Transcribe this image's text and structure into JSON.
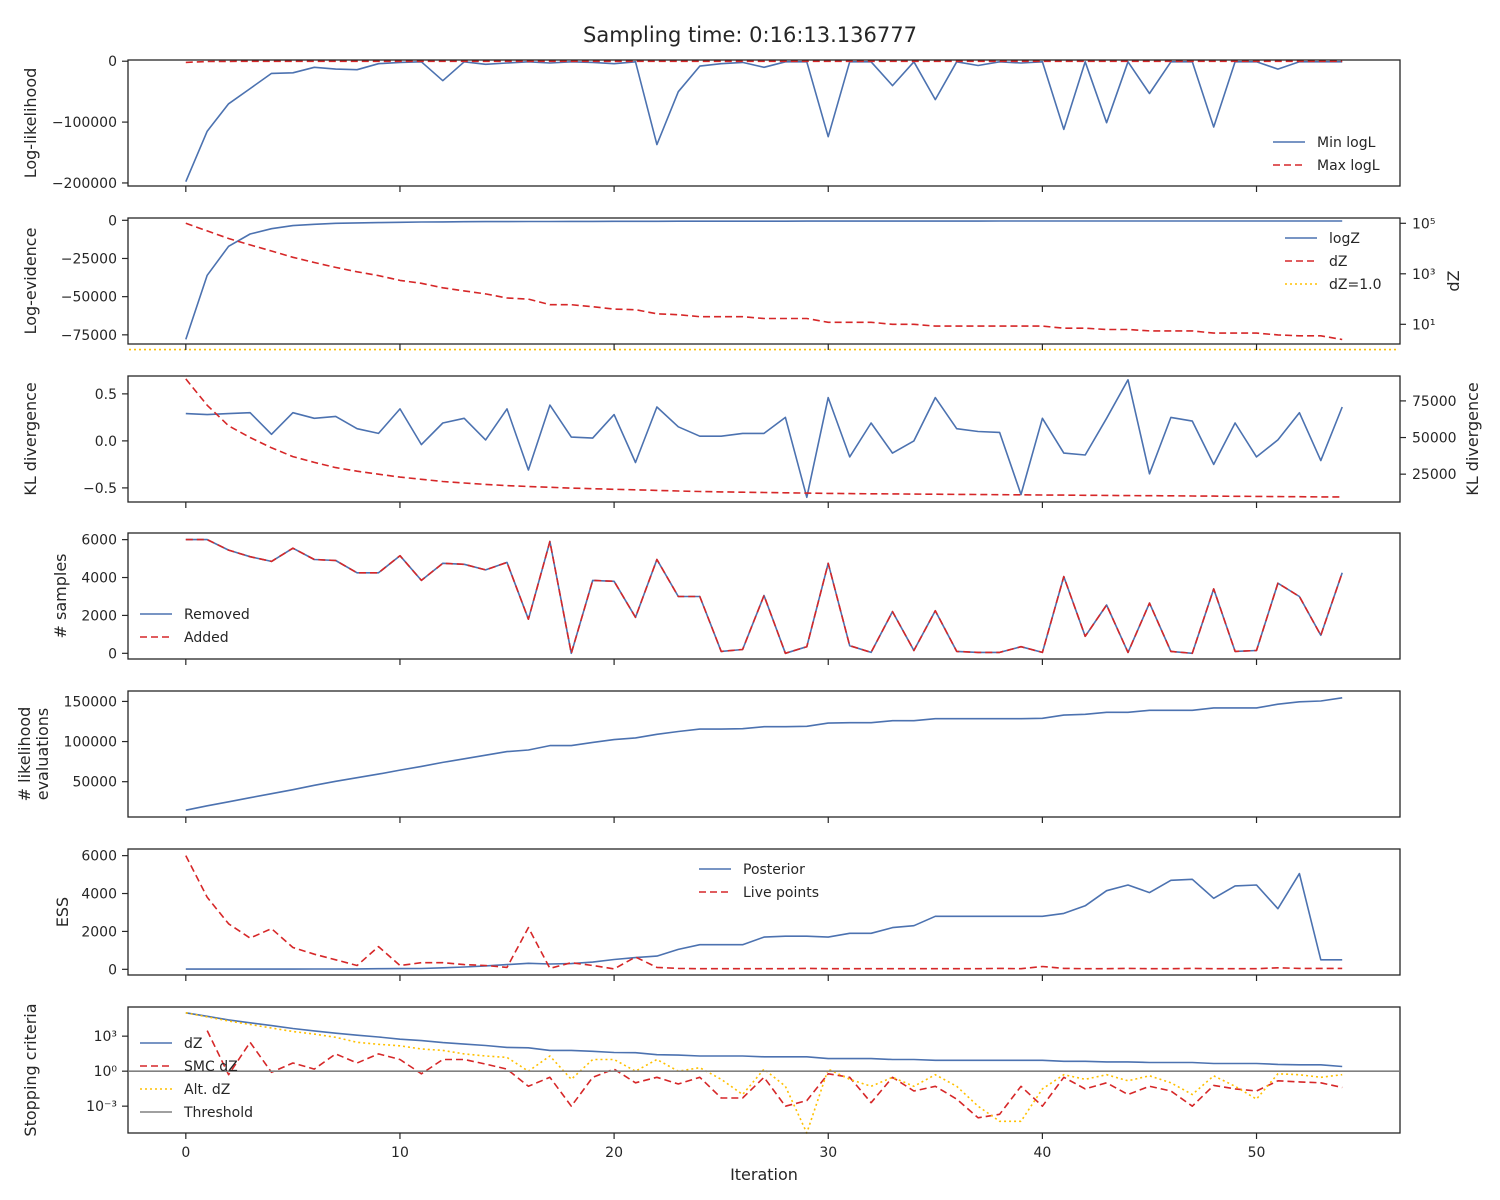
{
  "figure": {
    "title": "Sampling time: 0:16:13.136777",
    "xlabel": "Iteration",
    "x_ticks": [
      0,
      10,
      20,
      30,
      40,
      50
    ],
    "xlim": [
      -2.7,
      56.7
    ]
  },
  "colors": {
    "blue": "#4c72b0",
    "red": "#d62728",
    "gold": "#ffc000",
    "grey": "#808080",
    "axis": "#262626"
  },
  "chart_data": [
    {
      "id": "loglike",
      "type": "line",
      "ylabel": "Log-likelihood",
      "ylim": [
        -205000,
        2000
      ],
      "y_ticks": [
        0,
        -100000,
        -200000
      ],
      "y_tick_labels": [
        "0",
        "−100000",
        "−200000"
      ],
      "legend": "bottom-right",
      "series": [
        {
          "name": "Min logL",
          "color": "blue",
          "style": "solid",
          "values": [
            -198000,
            -115000,
            -70000,
            -45000,
            -20000,
            -19000,
            -10000,
            -13000,
            -14000,
            -4000,
            -2000,
            -1000,
            -32000,
            -1000,
            -5000,
            -3000,
            -1000,
            -3000,
            -1000,
            -2000,
            -4000,
            -1000,
            -137000,
            -50000,
            -8000,
            -4000,
            -2000,
            -10000,
            -1000,
            -1000,
            -124000,
            -1000,
            -1000,
            -40000,
            -1000,
            -63000,
            -1000,
            -7000,
            -1000,
            -3000,
            -1000,
            -112000,
            -1000,
            -101000,
            -1000,
            -53000,
            -1000,
            -1000,
            -108000,
            -1000,
            -1000,
            -13000,
            -1000,
            -1000,
            -1000
          ]
        },
        {
          "name": "Max logL",
          "color": "red",
          "style": "dashed",
          "values": [
            -2000,
            -500,
            -300,
            -200,
            -100,
            -100,
            -100,
            -100,
            -100,
            -100,
            -100,
            -100,
            -100,
            -100,
            -100,
            -100,
            -100,
            -100,
            -100,
            -100,
            -100,
            -100,
            -100,
            -100,
            -100,
            -100,
            -100,
            -100,
            -100,
            -100,
            -100,
            -100,
            -100,
            -100,
            -100,
            -100,
            -100,
            -100,
            -100,
            -100,
            -100,
            -100,
            -100,
            -100,
            -100,
            -100,
            -100,
            -100,
            -100,
            -100,
            -100,
            -100,
            -100,
            -100,
            -100
          ]
        }
      ]
    },
    {
      "id": "logz",
      "type": "line",
      "ylabel": "Log-evidence",
      "ylabel_right": "dZ",
      "ylim": [
        -81000,
        1500
      ],
      "y_ticks": [
        0,
        -25000,
        -50000,
        -75000
      ],
      "y_tick_labels": [
        "0",
        "−25000",
        "−50000",
        "−75000"
      ],
      "right_scale": "log",
      "right_ylim_log10": [
        0.22,
        5.21
      ],
      "right_ticks_log10": [
        5,
        3,
        1
      ],
      "right_tick_labels": [
        "10⁵",
        "10³",
        "10¹"
      ],
      "legend": "top-right",
      "series": [
        {
          "name": "logZ",
          "color": "blue",
          "style": "solid",
          "axis": "left",
          "values": [
            -78000,
            -36000,
            -17000,
            -9000,
            -5500,
            -3500,
            -2600,
            -2000,
            -1700,
            -1500,
            -1300,
            -1150,
            -1050,
            -950,
            -880,
            -830,
            -800,
            -760,
            -730,
            -700,
            -680,
            -660,
            -640,
            -620,
            -610,
            -600,
            -590,
            -580,
            -570,
            -560,
            -550,
            -540,
            -530,
            -520,
            -515,
            -510,
            -505,
            -500,
            -495,
            -490,
            -485,
            -480,
            -475,
            -470,
            -465,
            -460,
            -455,
            -450,
            -448,
            -446,
            -444,
            -442,
            -440,
            -438,
            -436
          ]
        },
        {
          "name": "dZ",
          "color": "red",
          "style": "dashed",
          "axis": "right",
          "values": [
            100000,
            50000,
            25000,
            14000,
            8000,
            4500,
            2800,
            1800,
            1200,
            850,
            550,
            420,
            280,
            210,
            160,
            110,
            100,
            60,
            60,
            50,
            40,
            38,
            26,
            24,
            20,
            20,
            20,
            17,
            17,
            17,
            12,
            12,
            12,
            10,
            10,
            8.5,
            8.5,
            8.5,
            8.5,
            8.5,
            8.5,
            7,
            7,
            6.2,
            6.2,
            5.5,
            5.5,
            5.5,
            4.5,
            4.5,
            4.5,
            3.8,
            3.5,
            3.5,
            2.5
          ]
        },
        {
          "name": "dZ=1.0",
          "color": "gold",
          "style": "dotted",
          "axis": "right",
          "values": [
            1,
            1
          ]
        }
      ]
    },
    {
      "id": "kl",
      "type": "line",
      "ylabel": "KL divergence",
      "ylabel_right": "KL divergence",
      "ylim": [
        -0.65,
        0.69
      ],
      "y_ticks": [
        0.5,
        0.0,
        -0.5
      ],
      "y_tick_labels": [
        "0.5",
        "0.0",
        "−0.5"
      ],
      "right_ylim": [
        6000,
        92000
      ],
      "right_ticks": [
        75000,
        50000,
        25000
      ],
      "right_tick_labels": [
        "75000",
        "50000",
        "25000"
      ],
      "series": [
        {
          "name": "KL divergence",
          "color": "blue",
          "style": "solid",
          "axis": "left",
          "values": [
            0.29,
            0.28,
            0.29,
            0.3,
            0.07,
            0.3,
            0.24,
            0.26,
            0.13,
            0.08,
            0.34,
            -0.04,
            0.19,
            0.24,
            0.01,
            0.34,
            -0.31,
            0.38,
            0.04,
            0.03,
            0.28,
            -0.23,
            0.36,
            0.15,
            0.05,
            0.05,
            0.08,
            0.08,
            0.25,
            -0.6,
            0.46,
            -0.17,
            0.19,
            -0.13,
            0.0,
            0.46,
            0.13,
            0.1,
            0.09,
            -0.57,
            0.24,
            -0.13,
            -0.15,
            0.24,
            0.65,
            -0.35,
            0.25,
            0.21,
            -0.25,
            0.19,
            -0.17,
            0.01,
            0.3,
            -0.21,
            0.36
          ]
        },
        {
          "name": "KL divergence (right)",
          "color": "red",
          "style": "dashed",
          "axis": "right",
          "values": [
            90000,
            72000,
            58000,
            50000,
            43000,
            37000,
            33000,
            29500,
            27000,
            25000,
            23000,
            21500,
            20000,
            19000,
            18000,
            17200,
            16600,
            16000,
            15500,
            15100,
            14700,
            14300,
            13900,
            13500,
            13200,
            12900,
            12700,
            12500,
            12300,
            12100,
            11900,
            11700,
            11600,
            11500,
            11400,
            11300,
            11200,
            11100,
            11000,
            10900,
            10800,
            10700,
            10600,
            10500,
            10400,
            10300,
            10200,
            10100,
            10000,
            9900,
            9800,
            9700,
            9600,
            9500,
            9400
          ]
        }
      ]
    },
    {
      "id": "samples",
      "type": "line",
      "ylabel": "# samples",
      "ylim": [
        -300,
        6350
      ],
      "y_ticks": [
        6000,
        4000,
        2000,
        0
      ],
      "y_tick_labels": [
        "6000",
        "4000",
        "2000",
        "0"
      ],
      "legend": "bottom-left",
      "series": [
        {
          "name": "Removed",
          "color": "blue",
          "style": "solid",
          "values": [
            6000,
            6000,
            5450,
            5100,
            4850,
            5550,
            4950,
            4900,
            4250,
            4250,
            5150,
            3850,
            4750,
            4700,
            4400,
            4800,
            1800,
            5900,
            0,
            3850,
            3800,
            1900,
            4950,
            3000,
            3000,
            100,
            200,
            3050,
            0,
            350,
            4750,
            400,
            50,
            2200,
            150,
            2250,
            100,
            50,
            50,
            350,
            50,
            4050,
            900,
            2550,
            50,
            2650,
            100,
            0,
            3400,
            100,
            150,
            3700,
            3000,
            950,
            4250
          ]
        },
        {
          "name": "Added",
          "color": "red",
          "style": "dashed",
          "values": [
            6000,
            6000,
            5450,
            5100,
            4850,
            5550,
            4950,
            4900,
            4250,
            4250,
            5150,
            3850,
            4750,
            4700,
            4400,
            4800,
            1800,
            5900,
            0,
            3850,
            3800,
            1900,
            4950,
            3000,
            3000,
            100,
            200,
            3050,
            0,
            350,
            4750,
            400,
            50,
            2200,
            150,
            2250,
            100,
            50,
            50,
            350,
            50,
            4050,
            900,
            2550,
            50,
            2650,
            100,
            0,
            3400,
            100,
            150,
            3700,
            3000,
            950,
            4250
          ]
        }
      ]
    },
    {
      "id": "evals",
      "type": "line",
      "ylabel": "# likelihood\nevaluations",
      "ylabel_lines": [
        "# likelihood",
        "evaluations"
      ],
      "ylim": [
        6000,
        163000
      ],
      "y_ticks": [
        150000,
        100000,
        50000
      ],
      "y_tick_labels": [
        "150000",
        "100000",
        "50000"
      ],
      "series": [
        {
          "name": "# likelihood evaluations",
          "color": "blue",
          "style": "solid",
          "values": [
            14500,
            20000,
            25000,
            30000,
            35000,
            40000,
            45500,
            50500,
            55000,
            59500,
            64500,
            69000,
            74000,
            78500,
            83000,
            87500,
            89500,
            95000,
            95000,
            99000,
            102500,
            104500,
            109000,
            112500,
            115500,
            115500,
            116000,
            118500,
            118500,
            119000,
            123000,
            123500,
            123500,
            126000,
            126000,
            128500,
            128500,
            128500,
            128500,
            128500,
            129000,
            133000,
            134000,
            136500,
            136500,
            139000,
            139000,
            139000,
            142000,
            142000,
            142000,
            146500,
            149500,
            150500,
            154500
          ]
        }
      ]
    },
    {
      "id": "ess",
      "type": "line",
      "ylabel": "ESS",
      "ylim": [
        -300,
        6350
      ],
      "y_ticks": [
        6000,
        4000,
        2000,
        0
      ],
      "y_tick_labels": [
        "6000",
        "4000",
        "2000",
        "0"
      ],
      "legend": "top-center",
      "series": [
        {
          "name": "Posterior",
          "color": "blue",
          "style": "solid",
          "values": [
            10,
            10,
            10,
            10,
            10,
            12,
            15,
            18,
            22,
            35,
            40,
            45,
            80,
            120,
            180,
            250,
            320,
            280,
            300,
            380,
            520,
            620,
            700,
            1050,
            1300,
            1300,
            1300,
            1700,
            1750,
            1750,
            1700,
            1900,
            1900,
            2200,
            2300,
            2800,
            2800,
            2800,
            2800,
            2800,
            2800,
            2950,
            3350,
            4150,
            4450,
            4050,
            4700,
            4750,
            3750,
            4400,
            4450,
            3200,
            5050,
            500,
            500
          ]
        },
        {
          "name": "Live points",
          "color": "red",
          "style": "dashed",
          "values": [
            6000,
            3800,
            2400,
            1650,
            2150,
            1150,
            800,
            500,
            200,
            1200,
            200,
            350,
            350,
            250,
            200,
            100,
            2200,
            50,
            350,
            200,
            20,
            650,
            100,
            50,
            30,
            30,
            30,
            30,
            30,
            50,
            30,
            30,
            30,
            30,
            30,
            30,
            30,
            30,
            50,
            30,
            150,
            50,
            30,
            30,
            50,
            30,
            30,
            50,
            30,
            30,
            30,
            80,
            50,
            50,
            50
          ]
        }
      ]
    },
    {
      "id": "stopping",
      "type": "line",
      "ylabel": "Stopping criteria",
      "xlabel": "Iteration",
      "scale": "log",
      "ylim_log10": [
        -5.3,
        5.5
      ],
      "y_ticks_log10": [
        3,
        0,
        -3
      ],
      "y_tick_labels": [
        "10³",
        "10⁰",
        "10⁻³"
      ],
      "legend": "bottom-left",
      "series": [
        {
          "name": "dZ",
          "color": "blue",
          "style": "solid",
          "values": [
            100000,
            50000,
            25000,
            14000,
            8000,
            4500,
            2800,
            1800,
            1200,
            850,
            550,
            420,
            280,
            210,
            160,
            110,
            100,
            60,
            60,
            50,
            40,
            38,
            26,
            24,
            20,
            20,
            20,
            17,
            17,
            17,
            12,
            12,
            12,
            10,
            10,
            8.5,
            8.5,
            8.5,
            8.5,
            8.5,
            8.5,
            7,
            7,
            6.2,
            6.2,
            5.5,
            5.5,
            5.5,
            4.5,
            4.5,
            4.5,
            3.8,
            3.5,
            3.5,
            2.5
          ]
        },
        {
          "name": "SMC dZ",
          "color": "red",
          "style": "dashed",
          "values": [
            null,
            3000,
            0.5,
            300,
            0.8,
            5,
            1.5,
            30,
            5,
            30,
            10,
            0.6,
            10,
            10,
            4,
            1.5,
            0.05,
            0.3,
            0.001,
            0.3,
            1.5,
            0.1,
            0.3,
            0.08,
            0.3,
            0.005,
            0.005,
            0.3,
            0.001,
            0.003,
            0.6,
            0.3,
            0.002,
            0.3,
            0.02,
            0.05,
            0.004,
            0.0001,
            0.0002,
            0.05,
            0.001,
            0.3,
            0.03,
            0.1,
            0.01,
            0.05,
            0.02,
            0.001,
            0.06,
            0.03,
            0.02,
            0.15,
            0.12,
            0.1,
            0.04
          ]
        },
        {
          "name": "Alt. dZ",
          "color": "gold",
          "style": "dotted",
          "values": [
            100000,
            45000,
            20000,
            10000,
            5000,
            2500,
            1500,
            800,
            300,
            200,
            150,
            80,
            60,
            30,
            20,
            15,
            1,
            20,
            0.2,
            10,
            10,
            1,
            10,
            1,
            2,
            0.2,
            0.01,
            1.5,
            0.05,
            5e-06,
            1.5,
            0.2,
            0.05,
            0.3,
            0.05,
            0.5,
            0.05,
            0.001,
            5e-05,
            5e-05,
            0.03,
            0.5,
            0.2,
            0.5,
            0.15,
            0.4,
            0.1,
            0.01,
            0.4,
            0.05,
            0.004,
            0.6,
            0.5,
            0.3,
            0.5
          ]
        },
        {
          "name": "Threshold",
          "color": "grey",
          "style": "solid",
          "values": [
            1,
            1
          ]
        }
      ]
    }
  ]
}
